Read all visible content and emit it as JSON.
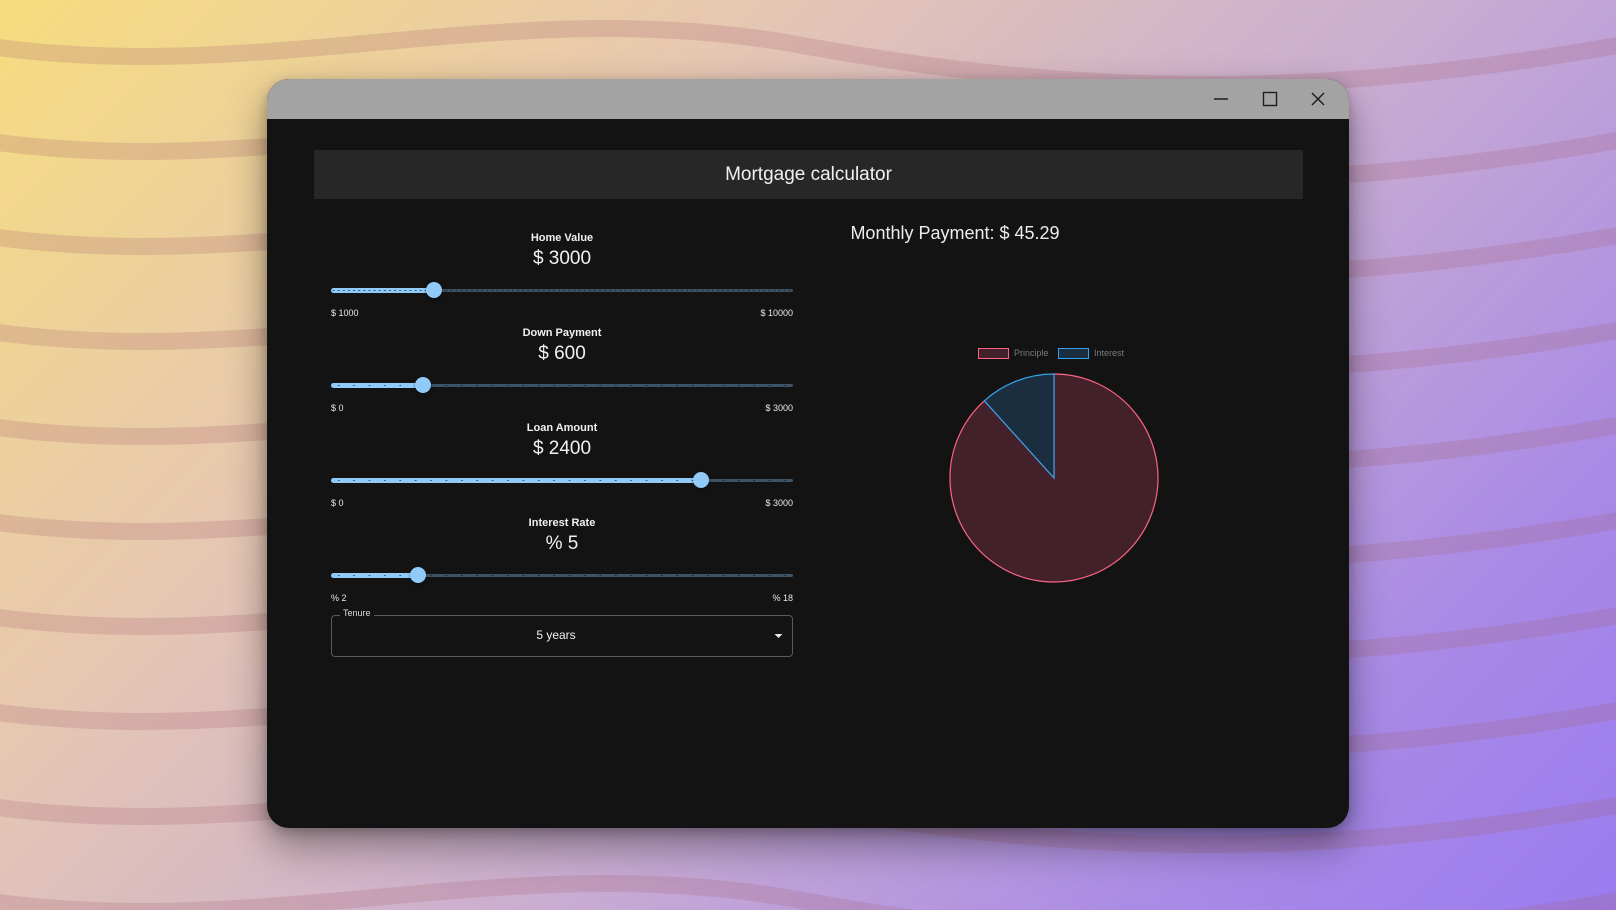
{
  "app": {
    "title": "Mortgage calculator"
  },
  "window_controls": [
    "minimize-icon",
    "maximize-icon",
    "close-icon"
  ],
  "sliders": [
    {
      "label": "Home Value",
      "display": "$ 3000",
      "value": 3000,
      "min": 1000,
      "max": 10000,
      "min_label": "$ 1000",
      "max_label": "$ 10000",
      "step": 100
    },
    {
      "label": "Down Payment",
      "display": "$ 600",
      "value": 600,
      "min": 0,
      "max": 3000,
      "min_label": "$ 0",
      "max_label": "$ 3000",
      "step": 100
    },
    {
      "label": "Loan Amount",
      "display": "$ 2400",
      "value": 2400,
      "min": 0,
      "max": 3000,
      "min_label": "$ 0",
      "max_label": "$ 3000",
      "step": 100
    },
    {
      "label": "Interest Rate",
      "display": "% 5",
      "value": 5,
      "min": 2,
      "max": 18,
      "min_label": "% 2",
      "max_label": "% 18",
      "step": 0.5
    }
  ],
  "tenure": {
    "legend": "Tenure",
    "value": "5 years"
  },
  "result": {
    "monthly_payment_label": "Monthly Payment: $ 45.29"
  },
  "chart_data": {
    "type": "pie",
    "labels": [
      "Principle",
      "Interest"
    ],
    "values": [
      2400,
      317.4
    ],
    "colors": [
      "#ff6384",
      "#36a2eb"
    ],
    "fill_colors": [
      "#42212a",
      "#1a2e40"
    ],
    "legend_position": "top"
  },
  "colors": {
    "accent": "#90caf9",
    "window_bg": "#131313",
    "titlebar": "#a3a3a3",
    "header_bg": "#272727"
  }
}
